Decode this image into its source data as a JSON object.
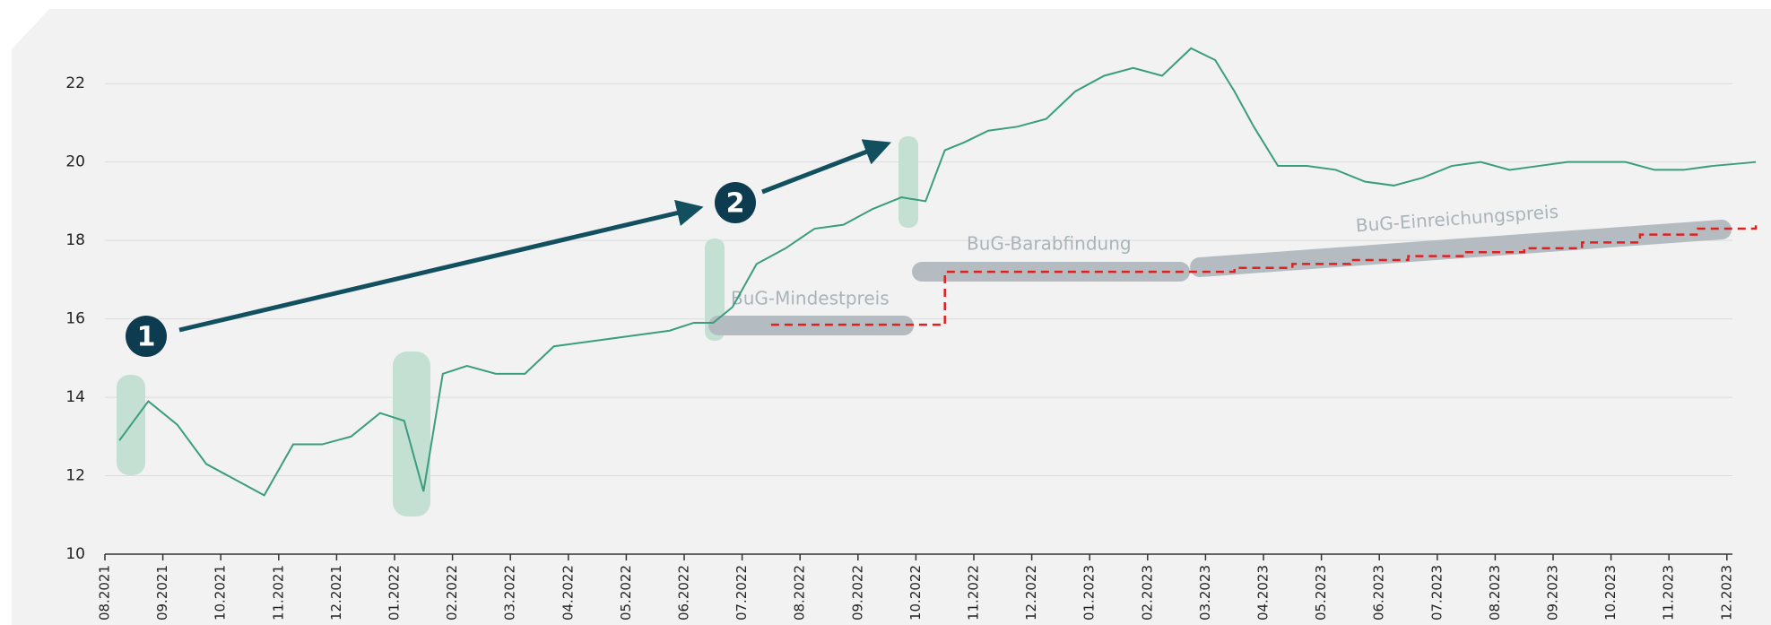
{
  "chart_data": {
    "type": "line",
    "ylim": [
      10,
      23.4
    ],
    "yticks": [
      10,
      12,
      14,
      16,
      18,
      20,
      22
    ],
    "grid": true,
    "xticks": [
      "08.2021",
      "09.2021",
      "10.2021",
      "11.2021",
      "12.2021",
      "01.2022",
      "02.2022",
      "03.2022",
      "04.2022",
      "05.2022",
      "06.2022",
      "07.2022",
      "08.2022",
      "09.2022",
      "10.2022",
      "11.2022",
      "12.2022",
      "01.2023",
      "02.2023",
      "03.2023",
      "04.2023",
      "05.2023",
      "06.2023",
      "07.2023",
      "08.2023",
      "09.2023",
      "10.2023",
      "11.2023",
      "12.2023"
    ],
    "annotations": [
      "BuG-Mindestpreis",
      "BuG-Barabfindung",
      "BuG-Einreichungspreis"
    ],
    "markers": [
      "1",
      "2"
    ],
    "series": [
      {
        "color": "#3a9e7e",
        "x": [
          "08.2021",
          "08.2021",
          "09.2021",
          "09.2021",
          "10.2021",
          "10.2021",
          "11.2021",
          "11.2021",
          "12.2021",
          "12.2021",
          "01.2022",
          "01.2022",
          "01.2022",
          "02.2022",
          "02.2022",
          "03.2022",
          "03.2022",
          "04.2022",
          "04.2022",
          "05.2022",
          "05.2022",
          "06.2022",
          "06.2022",
          "06.2022",
          "07.2022",
          "07.2022",
          "08.2022",
          "08.2022",
          "09.2022",
          "09.2022",
          "10.2022",
          "10.2022",
          "10.2022",
          "11.2022",
          "11.2022",
          "12.2022",
          "12.2022",
          "01.2023",
          "01.2023",
          "02.2023",
          "02.2023",
          "03.2023",
          "03.2023",
          "03.2023",
          "04.2023",
          "04.2023",
          "05.2023",
          "05.2023",
          "06.2023",
          "06.2023",
          "07.2023",
          "07.2023",
          "08.2023",
          "08.2023",
          "09.2023",
          "09.2023",
          "10.2023",
          "10.2023",
          "11.2023",
          "11.2023",
          "12.2023"
        ],
        "values": [
          12.9,
          13.9,
          13.3,
          12.3,
          11.9,
          11.5,
          12.8,
          12.8,
          13.0,
          13.6,
          13.4,
          11.6,
          14.6,
          14.8,
          14.6,
          14.6,
          15.3,
          15.4,
          15.5,
          15.6,
          15.7,
          15.9,
          15.9,
          16.3,
          17.4,
          17.8,
          18.3,
          18.4,
          18.8,
          19.1,
          19.0,
          20.3,
          20.5,
          20.8,
          20.9,
          21.1,
          21.8,
          22.2,
          22.4,
          22.2,
          22.9,
          22.6,
          21.8,
          20.9,
          19.9,
          19.9,
          19.8,
          19.5,
          19.4,
          19.6,
          19.9,
          20.0,
          19.8,
          19.9,
          20.0,
          20.0,
          20.0,
          19.8,
          19.8,
          19.9,
          20.0
        ]
      },
      {
        "color": "#e02020",
        "style": "dashed-step",
        "x": [
          "07.2022",
          "08.2022",
          "09.2022",
          "10.2022",
          "11.2022",
          "12.2022",
          "01.2023",
          "02.2023",
          "03.2023",
          "04.2023",
          "05.2023",
          "06.2023",
          "07.2023",
          "08.2023",
          "09.2023",
          "10.2023",
          "11.2023",
          "12.2023"
        ],
        "values": [
          15.85,
          15.85,
          15.85,
          17.2,
          17.2,
          17.2,
          17.2,
          17.2,
          17.3,
          17.4,
          17.5,
          17.6,
          17.7,
          17.8,
          17.95,
          18.15,
          18.3,
          18.4
        ]
      }
    ]
  }
}
